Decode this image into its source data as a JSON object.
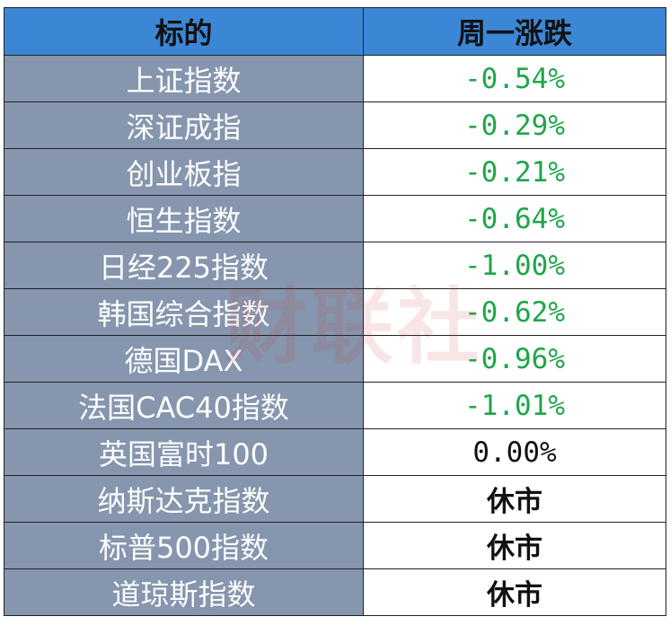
{
  "header": [
    "标的",
    "周一涨跌"
  ],
  "rows": [
    [
      "上证指数",
      "-0.54%"
    ],
    [
      "深证成指",
      "-0.29%"
    ],
    [
      "创业板指",
      "-0.21%"
    ],
    [
      "恒生指数",
      "-0.64%"
    ],
    [
      "日经225指数",
      "-1.00%"
    ],
    [
      "韩国综合指数",
      "-0.62%"
    ],
    [
      "德国DAX",
      "-0.96%"
    ],
    [
      "法国CAC40指数",
      "-1.01%"
    ],
    [
      "英国富时100",
      "0.00%"
    ],
    [
      "纳斯达克指数",
      "休市"
    ],
    [
      "标普500指数",
      "休市"
    ],
    [
      "道琼斯指数",
      "休市"
    ]
  ],
  "watermark": "财联社"
}
